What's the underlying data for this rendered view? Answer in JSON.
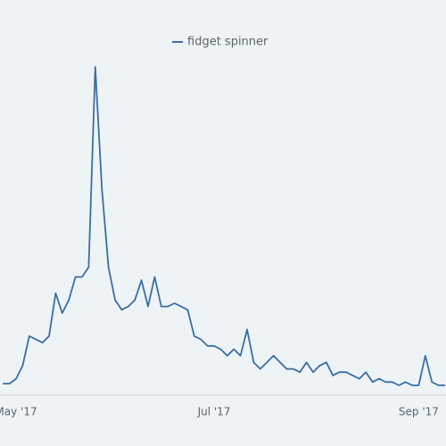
{
  "chart_data": {
    "type": "line",
    "categories": [
      null,
      null,
      "May '17",
      null,
      null,
      null,
      null,
      null,
      null,
      null,
      null,
      null,
      null,
      null,
      null,
      null,
      null,
      null,
      null,
      null,
      null,
      null,
      null,
      null,
      null,
      null,
      null,
      null,
      null,
      null,
      null,
      null,
      "Jul '17",
      null,
      null,
      null,
      null,
      null,
      null,
      null,
      null,
      null,
      null,
      null,
      null,
      null,
      null,
      null,
      null,
      null,
      null,
      null,
      null,
      null,
      null,
      null,
      null,
      null,
      null,
      null,
      null,
      null,
      null,
      "Sep '17",
      null,
      null,
      null,
      null
    ],
    "series": [
      {
        "name": "fidget spinner",
        "color": "#3b6ea5",
        "values": [
          3.5,
          3.5,
          5,
          9,
          18,
          17,
          16,
          18,
          31,
          25,
          29,
          36,
          36,
          39,
          100,
          63,
          39,
          29,
          26,
          27,
          29,
          35,
          27,
          36,
          27,
          27,
          28,
          27,
          26,
          18,
          17,
          15,
          15,
          14,
          12,
          14,
          12,
          20,
          10,
          8,
          10,
          12,
          10,
          8,
          8,
          7,
          10,
          7,
          9,
          10,
          6,
          7,
          7,
          6,
          5,
          7,
          4,
          5,
          4,
          4,
          3,
          4,
          3,
          3,
          12,
          4,
          3,
          3
        ]
      }
    ],
    "ylim": [
      0,
      100
    ]
  }
}
